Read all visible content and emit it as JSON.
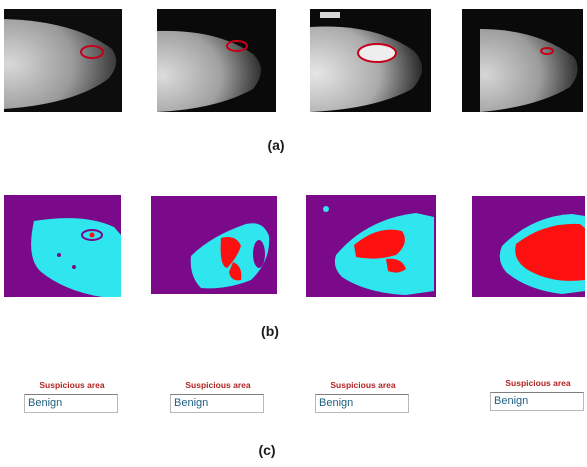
{
  "figure": {
    "row_a": {
      "caption": "(a)",
      "panels": 4
    },
    "row_b": {
      "caption": "(b)",
      "panels": 4
    },
    "row_c": {
      "caption": "(c)",
      "results": [
        {
          "title": "Suspicious area",
          "value": "Benign"
        },
        {
          "title": "Suspicious area",
          "value": "Benign"
        },
        {
          "title": "Suspicious area",
          "value": "Benign"
        },
        {
          "title": "Suspicious area",
          "value": "Benign"
        }
      ]
    },
    "colors": {
      "background_purple": "#7a0a8a",
      "tissue_cyan": "#2fe6ef",
      "region_red": "#ff1010",
      "roi_outline": "#c4001a",
      "result_title": "#b22222",
      "result_value": "#1f5f80"
    }
  }
}
